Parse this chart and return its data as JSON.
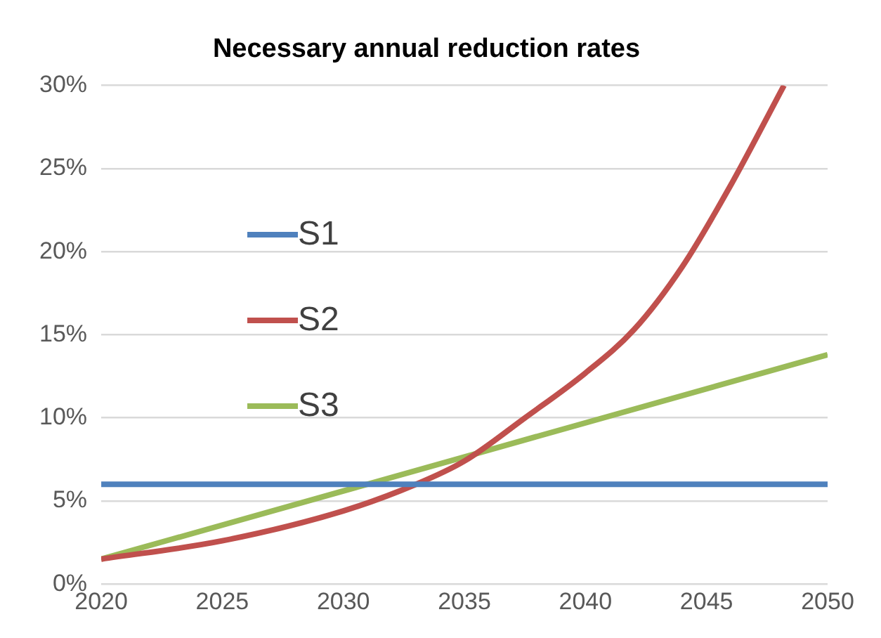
{
  "chart_data": {
    "type": "line",
    "title": "Necessary annual reduction rates",
    "xlim": [
      2020,
      2050
    ],
    "xticks": [
      2020,
      2025,
      2030,
      2035,
      2040,
      2045,
      2050
    ],
    "ylim": [
      0,
      30
    ],
    "yticks": [
      {
        "value": 0,
        "label": "0%"
      },
      {
        "value": 5,
        "label": "5%"
      },
      {
        "value": 10,
        "label": "10%"
      },
      {
        "value": 15,
        "label": "15%"
      },
      {
        "value": 20,
        "label": "20%"
      },
      {
        "value": 25,
        "label": "25%"
      },
      {
        "value": 30,
        "label": "30%"
      }
    ],
    "grid": "y",
    "legend": "top left",
    "marker": "none",
    "line_style": "solid",
    "series": [
      {
        "name": "S1",
        "color": "#4f81bd",
        "x": [
          2020,
          2050
        ],
        "values": [
          6,
          6
        ]
      },
      {
        "name": "S2",
        "color": "#c0504d",
        "x": [
          2020,
          2025,
          2030,
          2033,
          2035,
          2037.5,
          2040,
          2042,
          2044,
          2046,
          2048.2
        ],
        "values": [
          1.5,
          2.6,
          4.4,
          6.0,
          7.4,
          10,
          12.7,
          15.3,
          19.1,
          24,
          30
        ]
      },
      {
        "name": "S3",
        "color": "#9bbb59",
        "x": [
          2020,
          2050
        ],
        "values": [
          1.5,
          13.8
        ]
      }
    ]
  }
}
